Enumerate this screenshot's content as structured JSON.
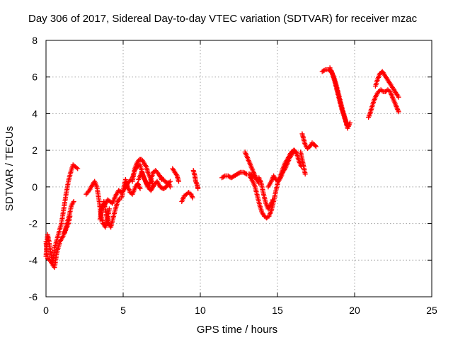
{
  "chart_data": {
    "type": "scatter",
    "title": "Day 306 of 2017, Sidereal Day-to-day VTEC variation (SDTVAR) for receiver mzac",
    "xlabel": "GPS time / hours",
    "ylabel": "SDTVAR / TECUs",
    "xlim": [
      0,
      25
    ],
    "ylim": [
      -6,
      8
    ],
    "xticks": [
      "0",
      "5",
      "10",
      "15",
      "20",
      "25"
    ],
    "yticks": [
      "-6",
      "-4",
      "-2",
      "0",
      "2",
      "4",
      "6",
      "8"
    ],
    "grid": true,
    "marker": "plus",
    "color": "#ff0000",
    "segments": [
      {
        "name": "seg-1",
        "points": [
          [
            0.0,
            -3.8
          ],
          [
            0.1,
            -2.6
          ],
          [
            0.2,
            -3.0
          ],
          [
            0.3,
            -3.6
          ],
          [
            0.45,
            -4.1
          ],
          [
            0.55,
            -3.3
          ]
        ]
      },
      {
        "name": "seg-2",
        "points": [
          [
            0.0,
            -3.0
          ],
          [
            0.1,
            -3.9
          ],
          [
            0.25,
            -4.0
          ],
          [
            0.4,
            -4.2
          ],
          [
            0.55,
            -4.4
          ],
          [
            0.7,
            -3.6
          ],
          [
            0.9,
            -3.0
          ],
          [
            1.1,
            -2.7
          ],
          [
            1.3,
            -2.3
          ],
          [
            1.45,
            -2.0
          ],
          [
            1.55,
            -1.6
          ]
        ]
      },
      {
        "name": "seg-3",
        "points": [
          [
            0.6,
            -3.2
          ],
          [
            0.8,
            -2.6
          ],
          [
            1.0,
            -2.0
          ],
          [
            1.15,
            -1.2
          ],
          [
            1.3,
            -0.4
          ],
          [
            1.45,
            0.3
          ],
          [
            1.6,
            0.8
          ],
          [
            1.75,
            1.2
          ],
          [
            1.9,
            1.1
          ],
          [
            2.05,
            1.0
          ]
        ]
      },
      {
        "name": "seg-4",
        "points": [
          [
            1.2,
            -2.5
          ],
          [
            1.35,
            -2.0
          ],
          [
            1.5,
            -1.6
          ],
          [
            1.65,
            -1.0
          ],
          [
            1.8,
            -0.8
          ]
        ]
      },
      {
        "name": "seg-5",
        "points": [
          [
            2.6,
            -0.4
          ],
          [
            2.8,
            -0.2
          ],
          [
            3.0,
            0.1
          ],
          [
            3.15,
            0.3
          ],
          [
            3.3,
            0.0
          ],
          [
            3.45,
            -0.8
          ],
          [
            3.55,
            -1.5
          ],
          [
            3.7,
            -2.0
          ],
          [
            3.85,
            -2.2
          ],
          [
            4.0,
            -1.7
          ],
          [
            4.1,
            -1.2
          ]
        ]
      },
      {
        "name": "seg-6",
        "points": [
          [
            3.5,
            -1.8
          ],
          [
            3.6,
            -1.2
          ],
          [
            3.75,
            -0.8
          ],
          [
            3.9,
            -1.5
          ],
          [
            4.05,
            -2.0
          ],
          [
            4.2,
            -2.2
          ],
          [
            4.35,
            -1.7
          ],
          [
            4.5,
            -1.2
          ],
          [
            4.65,
            -0.8
          ],
          [
            4.8,
            -0.6
          ]
        ]
      },
      {
        "name": "seg-7",
        "points": [
          [
            3.8,
            -1.0
          ],
          [
            4.0,
            -0.7
          ],
          [
            4.3,
            -0.9
          ],
          [
            4.5,
            -0.5
          ],
          [
            4.7,
            -0.2
          ],
          [
            4.9,
            -0.3
          ],
          [
            5.1,
            -0.1
          ],
          [
            5.3,
            0.2
          ],
          [
            5.5,
            0.4
          ]
        ]
      },
      {
        "name": "seg-8",
        "points": [
          [
            4.9,
            -0.6
          ],
          [
            5.05,
            0.0
          ],
          [
            5.15,
            0.4
          ],
          [
            5.3,
            0.0
          ],
          [
            5.45,
            -0.3
          ],
          [
            5.6,
            -0.4
          ],
          [
            5.8,
            0.0
          ],
          [
            5.95,
            0.2
          ],
          [
            6.1,
            -0.1
          ]
        ]
      },
      {
        "name": "seg-9",
        "points": [
          [
            5.6,
            0.3
          ],
          [
            5.75,
            1.0
          ],
          [
            5.9,
            1.3
          ],
          [
            6.05,
            1.5
          ],
          [
            6.2,
            1.5
          ],
          [
            6.35,
            1.3
          ],
          [
            6.5,
            1.1
          ],
          [
            6.6,
            0.8
          ],
          [
            6.75,
            0.5
          ],
          [
            6.9,
            0.2
          ]
        ]
      },
      {
        "name": "seg-10",
        "points": [
          [
            5.6,
            0.5
          ],
          [
            5.75,
            0.9
          ],
          [
            5.9,
            1.1
          ],
          [
            6.1,
            1.2
          ],
          [
            6.3,
            0.6
          ],
          [
            6.5,
            0.2
          ],
          [
            6.65,
            0.0
          ],
          [
            6.8,
            0.4
          ],
          [
            6.95,
            0.8
          ],
          [
            7.1,
            0.9
          ],
          [
            7.3,
            0.7
          ],
          [
            7.5,
            0.4
          ]
        ]
      },
      {
        "name": "seg-11",
        "points": [
          [
            6.0,
            0.4
          ],
          [
            6.2,
            0.8
          ],
          [
            6.4,
            0.4
          ],
          [
            6.6,
            0.0
          ],
          [
            6.8,
            -0.2
          ],
          [
            7.0,
            0.1
          ],
          [
            7.2,
            0.3
          ],
          [
            7.4,
            0.0
          ],
          [
            7.6,
            -0.1
          ],
          [
            7.8,
            0.0
          ],
          [
            7.95,
            0.2
          ],
          [
            8.05,
            0.0
          ]
        ]
      },
      {
        "name": "seg-12",
        "points": [
          [
            7.5,
            0.5
          ],
          [
            7.7,
            0.3
          ],
          [
            7.9,
            0.2
          ],
          [
            8.05,
            0.3
          ]
        ]
      },
      {
        "name": "seg-13",
        "points": [
          [
            8.2,
            1.0
          ],
          [
            8.35,
            0.8
          ],
          [
            8.5,
            0.6
          ],
          [
            8.6,
            0.3
          ]
        ]
      },
      {
        "name": "seg-14",
        "points": [
          [
            8.8,
            -0.8
          ],
          [
            8.95,
            -0.5
          ],
          [
            9.1,
            -0.4
          ],
          [
            9.25,
            -0.3
          ],
          [
            9.4,
            -0.4
          ],
          [
            9.5,
            -0.6
          ]
        ]
      },
      {
        "name": "seg-15",
        "points": [
          [
            9.55,
            0.9
          ],
          [
            9.65,
            0.6
          ],
          [
            9.7,
            0.3
          ],
          [
            9.8,
            0.1
          ],
          [
            9.85,
            -0.1
          ]
        ]
      },
      {
        "name": "seg-16",
        "points": [
          [
            11.4,
            0.5
          ],
          [
            11.6,
            0.6
          ],
          [
            11.8,
            0.6
          ],
          [
            12.0,
            0.5
          ],
          [
            12.2,
            0.6
          ],
          [
            12.4,
            0.7
          ],
          [
            12.6,
            0.8
          ],
          [
            12.8,
            0.8
          ],
          [
            13.0,
            0.7
          ],
          [
            13.2,
            0.7
          ],
          [
            13.4,
            0.6
          ],
          [
            13.6,
            0.5
          ]
        ]
      },
      {
        "name": "seg-17",
        "points": [
          [
            12.9,
            1.9
          ],
          [
            13.05,
            1.6
          ],
          [
            13.2,
            1.3
          ],
          [
            13.35,
            1.0
          ],
          [
            13.5,
            0.7
          ],
          [
            13.65,
            0.4
          ],
          [
            13.8,
            0.2
          ]
        ]
      },
      {
        "name": "seg-18",
        "points": [
          [
            13.2,
            0.6
          ],
          [
            13.4,
            0.3
          ],
          [
            13.55,
            0.0
          ],
          [
            13.7,
            -0.5
          ],
          [
            13.85,
            -1.0
          ],
          [
            14.0,
            -1.4
          ],
          [
            14.15,
            -1.6
          ],
          [
            14.3,
            -1.7
          ],
          [
            14.45,
            -1.6
          ],
          [
            14.6,
            -1.3
          ],
          [
            14.75,
            -0.8
          ],
          [
            14.9,
            -0.2
          ],
          [
            15.05,
            0.3
          ],
          [
            15.2,
            0.6
          ],
          [
            15.35,
            1.0
          ],
          [
            15.5,
            1.3
          ],
          [
            15.7,
            1.6
          ],
          [
            15.9,
            1.9
          ],
          [
            16.05,
            2.0
          ],
          [
            16.2,
            1.9
          ]
        ]
      },
      {
        "name": "seg-19",
        "points": [
          [
            13.8,
            0.5
          ],
          [
            13.95,
            0.2
          ],
          [
            14.1,
            -0.4
          ],
          [
            14.25,
            -0.9
          ],
          [
            14.4,
            -1.2
          ],
          [
            14.55,
            -1.0
          ],
          [
            14.7,
            -0.7
          ]
        ]
      },
      {
        "name": "seg-20",
        "points": [
          [
            14.4,
            0.0
          ],
          [
            14.6,
            0.3
          ],
          [
            14.75,
            0.6
          ],
          [
            14.9,
            0.4
          ],
          [
            15.05,
            0.3
          ],
          [
            15.2,
            0.5
          ],
          [
            15.35,
            0.8
          ],
          [
            15.5,
            1.0
          ],
          [
            15.65,
            1.3
          ],
          [
            15.8,
            1.6
          ],
          [
            15.95,
            1.8
          ],
          [
            16.1,
            2.0
          ],
          [
            16.25,
            1.8
          ],
          [
            16.4,
            1.4
          ],
          [
            16.55,
            1.1
          ]
        ]
      },
      {
        "name": "seg-21",
        "points": [
          [
            16.5,
            1.9
          ],
          [
            16.6,
            1.5
          ],
          [
            16.7,
            1.1
          ],
          [
            16.8,
            0.7
          ]
        ]
      },
      {
        "name": "seg-22",
        "points": [
          [
            16.6,
            2.9
          ],
          [
            16.7,
            2.6
          ],
          [
            16.8,
            2.3
          ],
          [
            16.95,
            2.1
          ],
          [
            17.1,
            2.2
          ],
          [
            17.25,
            2.4
          ],
          [
            17.4,
            2.3
          ],
          [
            17.5,
            2.2
          ]
        ]
      },
      {
        "name": "seg-23",
        "points": [
          [
            17.9,
            6.3
          ],
          [
            18.1,
            6.4
          ],
          [
            18.3,
            6.4
          ],
          [
            18.5,
            6.3
          ],
          [
            18.65,
            6.0
          ],
          [
            18.8,
            5.6
          ],
          [
            18.95,
            5.1
          ],
          [
            19.1,
            4.6
          ],
          [
            19.25,
            4.1
          ],
          [
            19.4,
            3.7
          ],
          [
            19.5,
            3.4
          ],
          [
            19.6,
            3.3
          ],
          [
            19.7,
            3.5
          ]
        ]
      },
      {
        "name": "seg-24",
        "points": [
          [
            18.4,
            6.5
          ],
          [
            18.55,
            6.2
          ],
          [
            18.7,
            5.8
          ],
          [
            18.85,
            5.3
          ],
          [
            19.0,
            4.8
          ],
          [
            19.15,
            4.3
          ],
          [
            19.3,
            3.9
          ],
          [
            19.45,
            3.5
          ],
          [
            19.55,
            3.2
          ]
        ]
      },
      {
        "name": "seg-25",
        "points": [
          [
            20.9,
            3.8
          ],
          [
            21.0,
            4.0
          ],
          [
            21.1,
            4.3
          ],
          [
            21.25,
            4.7
          ],
          [
            21.4,
            5.0
          ],
          [
            21.55,
            5.2
          ],
          [
            21.7,
            5.3
          ],
          [
            21.85,
            5.2
          ],
          [
            22.0,
            5.2
          ],
          [
            22.15,
            5.3
          ],
          [
            22.3,
            5.2
          ],
          [
            22.45,
            4.9
          ],
          [
            22.6,
            4.6
          ],
          [
            22.75,
            4.3
          ],
          [
            22.85,
            4.1
          ]
        ]
      },
      {
        "name": "seg-26",
        "points": [
          [
            21.35,
            5.5
          ],
          [
            21.5,
            5.9
          ],
          [
            21.65,
            6.2
          ],
          [
            21.8,
            6.3
          ],
          [
            21.95,
            6.1
          ],
          [
            22.1,
            5.9
          ],
          [
            22.25,
            5.7
          ],
          [
            22.4,
            5.5
          ],
          [
            22.55,
            5.3
          ],
          [
            22.7,
            5.1
          ],
          [
            22.85,
            4.9
          ]
        ]
      }
    ]
  }
}
